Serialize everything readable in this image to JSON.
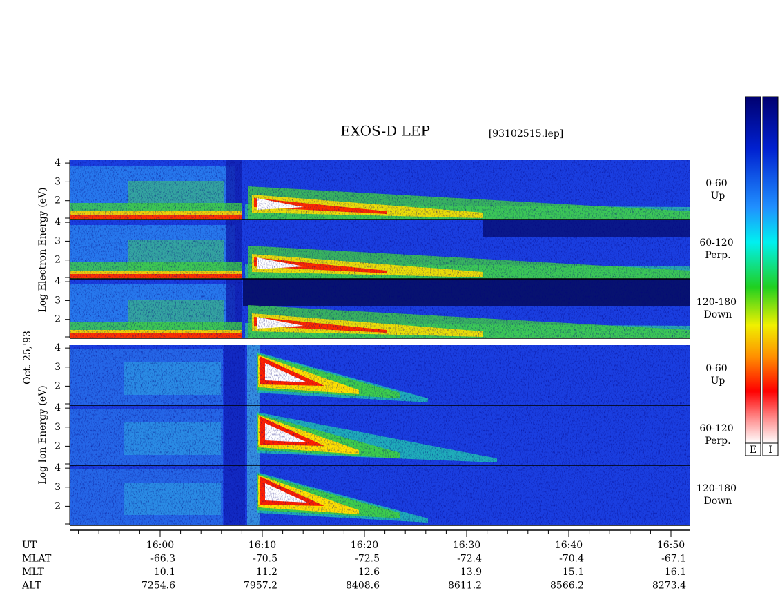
{
  "title": "EXOS-D LEP",
  "file": "[93102515.lep]",
  "date": "Oct. 25,'93",
  "electron": {
    "axis_label": "Log Electron Energy (eV)",
    "yticks": [
      2,
      3,
      4
    ],
    "panels": [
      {
        "range": "0-60",
        "direction": "Up"
      },
      {
        "range": "60-120",
        "direction": "Perp."
      },
      {
        "range": "120-180",
        "direction": "Down"
      }
    ]
  },
  "ion": {
    "axis_label": "Log Ion Energy (eV)",
    "yticks": [
      2,
      3,
      4
    ],
    "panels": [
      {
        "range": "0-60",
        "direction": "Up"
      },
      {
        "range": "60-120",
        "direction": "Perp."
      },
      {
        "range": "120-180",
        "direction": "Down"
      }
    ]
  },
  "colorbar": [
    "E",
    "I"
  ],
  "rows": [
    {
      "label": "UT",
      "values": [
        "16:00",
        "16:10",
        "16:20",
        "16:30",
        "16:40",
        "16:50"
      ]
    },
    {
      "label": "MLAT",
      "values": [
        -66.3,
        -70.5,
        -72.5,
        -72.4,
        -70.4,
        -67.1
      ]
    },
    {
      "label": "MLT",
      "values": [
        10.1,
        11.2,
        12.6,
        13.9,
        15.1,
        16.1
      ]
    },
    {
      "label": "ALT",
      "values": [
        7254.6,
        7957.2,
        8408.6,
        8611.2,
        8566.2,
        8273.4
      ]
    }
  ]
}
